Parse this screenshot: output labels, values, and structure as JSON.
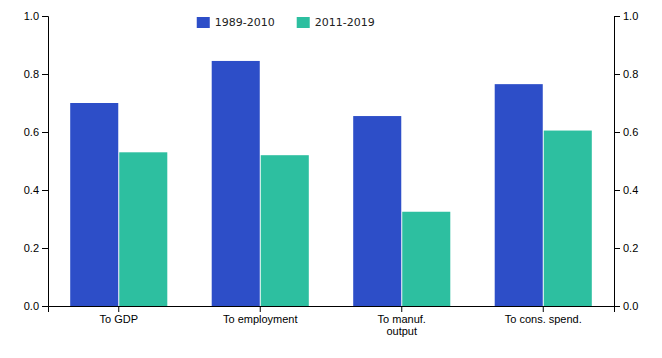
{
  "chart_data": {
    "type": "bar",
    "categories": [
      "To GDP",
      "To employment",
      "To manuf.\noutput",
      "To cons. spend."
    ],
    "series": [
      {
        "name": "1989-2010",
        "color": "#2d4ec8",
        "values": [
          0.7,
          0.845,
          0.655,
          0.765
        ]
      },
      {
        "name": "2011-2019",
        "color": "#2dbfa0",
        "values": [
          0.53,
          0.52,
          0.325,
          0.605
        ]
      }
    ],
    "ylim": [
      0.0,
      1.0
    ],
    "yticks": [
      {
        "value": 0.0,
        "label": "0.0"
      },
      0.2,
      0.4,
      0.6,
      0.8,
      {
        "value": 1.0,
        "label": "1.0"
      }
    ],
    "y2lim": [
      0.0,
      1.0
    ],
    "y2ticks": [
      {
        "value": 0.0,
        "label": "0.0"
      },
      0.2,
      0.4,
      0.6,
      0.8,
      {
        "value": 1.0,
        "label": "1.0"
      }
    ],
    "grid": false,
    "legend": "upper center"
  }
}
